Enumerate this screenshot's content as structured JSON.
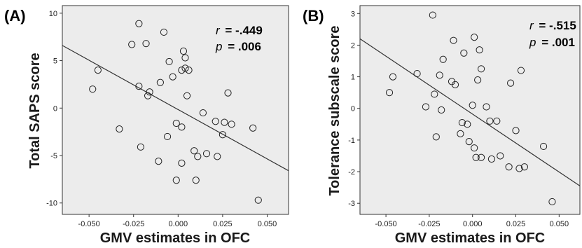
{
  "chart_data": [
    {
      "type": "scatter",
      "panel_label": "(A)",
      "xlabel": "GMV estimates in OFC",
      "ylabel": "Total SAPS score",
      "xlim": [
        -0.065,
        0.062
      ],
      "ylim": [
        -11.2,
        10.8
      ],
      "x_ticks": [
        -0.05,
        -0.025,
        0.0,
        0.025,
        0.05
      ],
      "x_tick_labels": [
        "-0.050",
        "-0.025",
        "0.000",
        "0.025",
        "0.050"
      ],
      "y_ticks": [
        -10,
        -5,
        0,
        5,
        10
      ],
      "y_tick_labels": [
        "-10",
        "-5",
        "0",
        "5",
        "10"
      ],
      "stats": {
        "r_label": "r",
        "r_value": "= -.449",
        "p_label": "p",
        "p_value": "= .006"
      },
      "regression": {
        "x1": -0.065,
        "y1": 6.6,
        "x2": 0.062,
        "y2": -6.6
      },
      "points": [
        {
          "x": -0.048,
          "y": 2.0
        },
        {
          "x": -0.045,
          "y": 4.0
        },
        {
          "x": -0.033,
          "y": -2.2
        },
        {
          "x": -0.026,
          "y": 6.7
        },
        {
          "x": -0.022,
          "y": 8.9
        },
        {
          "x": -0.022,
          "y": 2.3
        },
        {
          "x": -0.021,
          "y": -4.1
        },
        {
          "x": -0.018,
          "y": 6.8
        },
        {
          "x": -0.017,
          "y": 1.3
        },
        {
          "x": -0.016,
          "y": 1.7
        },
        {
          "x": -0.011,
          "y": -5.6
        },
        {
          "x": -0.01,
          "y": 2.7
        },
        {
          "x": -0.008,
          "y": 8.0
        },
        {
          "x": -0.006,
          "y": -3.0
        },
        {
          "x": -0.005,
          "y": 4.9
        },
        {
          "x": -0.003,
          "y": 3.3
        },
        {
          "x": -0.001,
          "y": -1.6
        },
        {
          "x": -0.001,
          "y": -7.6
        },
        {
          "x": 0.002,
          "y": 4.0
        },
        {
          "x": 0.002,
          "y": -2.0
        },
        {
          "x": 0.002,
          "y": -5.8
        },
        {
          "x": 0.003,
          "y": 6.0
        },
        {
          "x": 0.004,
          "y": 4.2
        },
        {
          "x": 0.004,
          "y": 5.3
        },
        {
          "x": 0.005,
          "y": 1.3
        },
        {
          "x": 0.006,
          "y": 4.0
        },
        {
          "x": 0.009,
          "y": -4.5
        },
        {
          "x": 0.01,
          "y": -7.6
        },
        {
          "x": 0.011,
          "y": -5.1
        },
        {
          "x": 0.014,
          "y": -0.5
        },
        {
          "x": 0.016,
          "y": -4.8
        },
        {
          "x": 0.021,
          "y": -1.4
        },
        {
          "x": 0.022,
          "y": -5.1
        },
        {
          "x": 0.025,
          "y": -2.8
        },
        {
          "x": 0.026,
          "y": -1.5
        },
        {
          "x": 0.028,
          "y": 1.6
        },
        {
          "x": 0.03,
          "y": -1.7
        },
        {
          "x": 0.042,
          "y": -2.1
        },
        {
          "x": 0.045,
          "y": -9.7
        }
      ]
    },
    {
      "type": "scatter",
      "panel_label": "(B)",
      "xlabel": "GMV estimates in OFC",
      "ylabel": "Tolerance subscale score",
      "xlim": [
        -0.065,
        0.062
      ],
      "ylim": [
        -3.35,
        3.25
      ],
      "x_ticks": [
        -0.05,
        -0.025,
        0.0,
        0.025,
        0.05
      ],
      "x_tick_labels": [
        "-0.050",
        "-0.025",
        "0.000",
        "0.025",
        "0.050"
      ],
      "y_ticks": [
        -3,
        -2,
        -1,
        0,
        1,
        2,
        3
      ],
      "y_tick_labels": [
        "-3",
        "-2",
        "-1",
        "0",
        "1",
        "2",
        "3"
      ],
      "stats": {
        "r_label": "r",
        "r_value": "= -.515",
        "p_label": "p",
        "p_value": "= .001"
      },
      "regression": {
        "x1": -0.065,
        "y1": 2.2,
        "x2": 0.062,
        "y2": -2.45
      },
      "points": [
        {
          "x": -0.048,
          "y": 0.5
        },
        {
          "x": -0.046,
          "y": 1.0
        },
        {
          "x": -0.032,
          "y": 1.1
        },
        {
          "x": -0.027,
          "y": 0.05
        },
        {
          "x": -0.023,
          "y": 2.95
        },
        {
          "x": -0.022,
          "y": 0.45
        },
        {
          "x": -0.021,
          "y": -0.9
        },
        {
          "x": -0.019,
          "y": 1.05
        },
        {
          "x": -0.018,
          "y": -0.05
        },
        {
          "x": -0.017,
          "y": 1.55
        },
        {
          "x": -0.012,
          "y": 0.85
        },
        {
          "x": -0.011,
          "y": 2.15
        },
        {
          "x": -0.01,
          "y": 0.75
        },
        {
          "x": -0.007,
          "y": -0.8
        },
        {
          "x": -0.006,
          "y": -0.45
        },
        {
          "x": -0.005,
          "y": 1.75
        },
        {
          "x": -0.003,
          "y": -0.5
        },
        {
          "x": -0.002,
          "y": -1.05
        },
        {
          "x": 0.0,
          "y": 0.1
        },
        {
          "x": 0.001,
          "y": -1.25
        },
        {
          "x": 0.001,
          "y": 2.25
        },
        {
          "x": 0.002,
          "y": -1.55
        },
        {
          "x": 0.003,
          "y": 0.9
        },
        {
          "x": 0.004,
          "y": 1.85
        },
        {
          "x": 0.005,
          "y": 1.25
        },
        {
          "x": 0.005,
          "y": -1.55
        },
        {
          "x": 0.008,
          "y": 0.05
        },
        {
          "x": 0.01,
          "y": -0.4
        },
        {
          "x": 0.011,
          "y": -1.6
        },
        {
          "x": 0.014,
          "y": -0.4
        },
        {
          "x": 0.016,
          "y": -1.5
        },
        {
          "x": 0.021,
          "y": -1.85
        },
        {
          "x": 0.022,
          "y": 0.8
        },
        {
          "x": 0.025,
          "y": -0.7
        },
        {
          "x": 0.027,
          "y": -1.9
        },
        {
          "x": 0.028,
          "y": 1.2
        },
        {
          "x": 0.03,
          "y": -1.85
        },
        {
          "x": 0.041,
          "y": -1.2
        },
        {
          "x": 0.046,
          "y": -2.95
        }
      ]
    }
  ]
}
